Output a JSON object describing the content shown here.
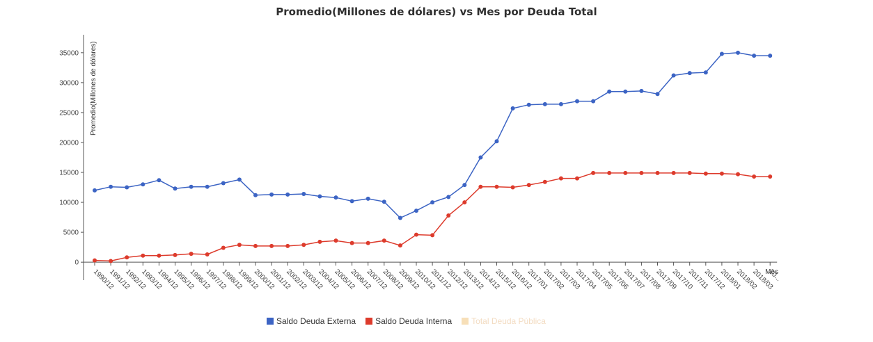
{
  "chart_data": {
    "type": "line",
    "title": "Promedio(Millones de dólares) vs Mes por Deuda Total",
    "xlabel": "Mes",
    "ylabel": "Promedio(Millones de dólares)",
    "ylim": [
      -3000,
      38000
    ],
    "yticks": [
      0,
      5000,
      10000,
      15000,
      20000,
      25000,
      30000,
      35000
    ],
    "ytick_labels": [
      "0",
      "5000",
      "10000",
      "15000",
      "20000",
      "25000",
      "30000",
      "35000"
    ],
    "x_tick_labels": [
      "1990/12",
      "1991/12",
      "1992/12",
      "1993/12",
      "1994/12",
      "1995/12",
      "1996/12",
      "1997/12",
      "1998/12",
      "1999/12",
      "2000/12",
      "2001/12",
      "2002/12",
      "2003/12",
      "2004/12",
      "2005/12",
      "2006/12",
      "2007/12",
      "2008/12",
      "2009/12",
      "2010/12",
      "2011/12",
      "2012/12",
      "2013/12",
      "2014/12",
      "2015/12",
      "2016/12",
      "2017/01",
      "2017/02",
      "2017/03",
      "2017/04",
      "2017/05",
      "2017/06",
      "2017/07",
      "2017/08",
      "2017/09",
      "2017/10",
      "2017/11",
      "2017/12",
      "2018/01",
      "2018/02",
      "2018/03",
      "20..."
    ],
    "grid": false,
    "legend_position": "bottom",
    "series": [
      {
        "name": "Saldo Deuda Externa",
        "color": "#3c64c4",
        "values": [
          12000,
          12600,
          12500,
          13000,
          13700,
          12300,
          12600,
          12600,
          13200,
          13800,
          11200,
          11300,
          11300,
          11400,
          11000,
          10800,
          10200,
          10600,
          10100,
          7400,
          8600,
          10000,
          10900,
          12900,
          17500,
          20200,
          25700,
          26300,
          26400,
          26400,
          26900,
          26900,
          28500,
          28500,
          28600,
          28100,
          31200,
          31600,
          31700,
          34800,
          35000,
          34500,
          34500
        ]
      },
      {
        "name": "Saldo Deuda Interna",
        "color": "#dd3b2c",
        "values": [
          300,
          200,
          800,
          1100,
          1100,
          1200,
          1400,
          1300,
          2400,
          2900,
          2700,
          2700,
          2700,
          2900,
          3400,
          3600,
          3200,
          3200,
          3600,
          2800,
          4600,
          4500,
          7800,
          10000,
          12600,
          12600,
          12500,
          12900,
          13400,
          14000,
          14000,
          14900,
          14900,
          14900,
          14900,
          14900,
          14900,
          14900,
          14800,
          14800,
          14700,
          14300,
          14300
        ]
      },
      {
        "name": "Total Deuda Pública",
        "color": "#f7dfb8",
        "values": []
      }
    ]
  }
}
